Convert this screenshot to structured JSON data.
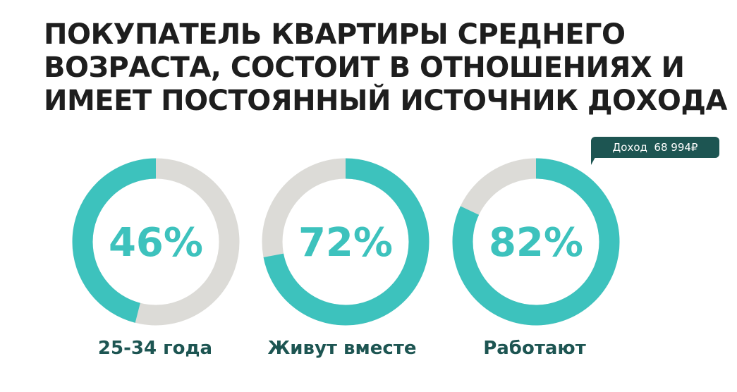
{
  "title_lines": [
    "ПОКУПАТЕЛЬ КВАРТИРЫ СРЕДНЕГО",
    "ВОЗРАСТА, СОСТОИТ В ОТНОШЕНИЯХ И",
    "ИМЕЕТ ПОСТОЯННЫЙ ИСТОЧНИК ДОХОДА"
  ],
  "colors": {
    "accent": "#3dc2bd",
    "track": "#dcdbd7",
    "caption": "#1d5552",
    "title": "#1e1e1e"
  },
  "tooltip": {
    "label": "Доход",
    "value": "68 994₽"
  },
  "chart_data": [
    {
      "type": "pie",
      "style": "donut",
      "value": 46,
      "label": "46%",
      "caption": "25-34 года",
      "start": "top",
      "direction": "counter-clockwise"
    },
    {
      "type": "pie",
      "style": "donut",
      "value": 72,
      "label": "72%",
      "caption": "Живут вместе",
      "start": "top",
      "direction": "clockwise"
    },
    {
      "type": "pie",
      "style": "donut",
      "value": 82,
      "label": "82%",
      "caption": "Работают",
      "start": "top",
      "direction": "clockwise"
    }
  ]
}
